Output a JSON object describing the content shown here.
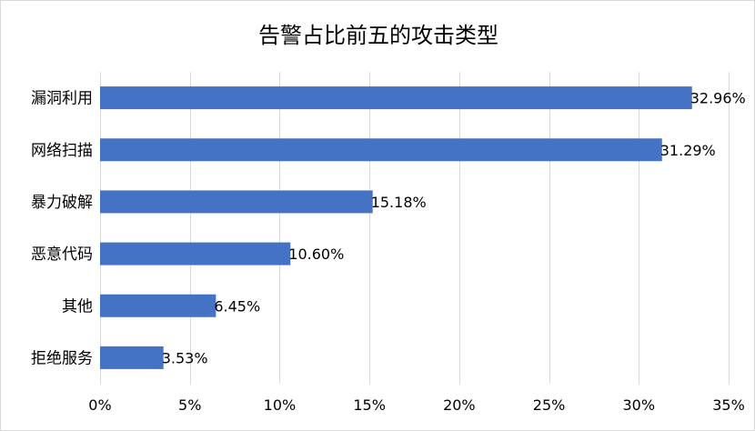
{
  "chart_data": {
    "type": "bar",
    "orientation": "horizontal",
    "title": "告警占比前五的攻击类型",
    "categories": [
      "漏洞利用",
      "网络扫描",
      "暴力破解",
      "恶意代码",
      "其他",
      "拒绝服务"
    ],
    "values": [
      32.96,
      31.29,
      15.18,
      10.6,
      6.45,
      3.53
    ],
    "data_labels": [
      "32.96%",
      "31.29%",
      "15.18%",
      "10.60%",
      "6.45%",
      "3.53%"
    ],
    "x_ticks": [
      0,
      5,
      10,
      15,
      20,
      25,
      30,
      35
    ],
    "x_tick_labels": [
      "0%",
      "5%",
      "10%",
      "15%",
      "20%",
      "25%",
      "30%",
      "35%"
    ],
    "xlim": [
      0,
      35
    ],
    "xlabel": "",
    "ylabel": "",
    "grid": "vertical",
    "legend": "none",
    "bar_color": "#4472c4"
  }
}
